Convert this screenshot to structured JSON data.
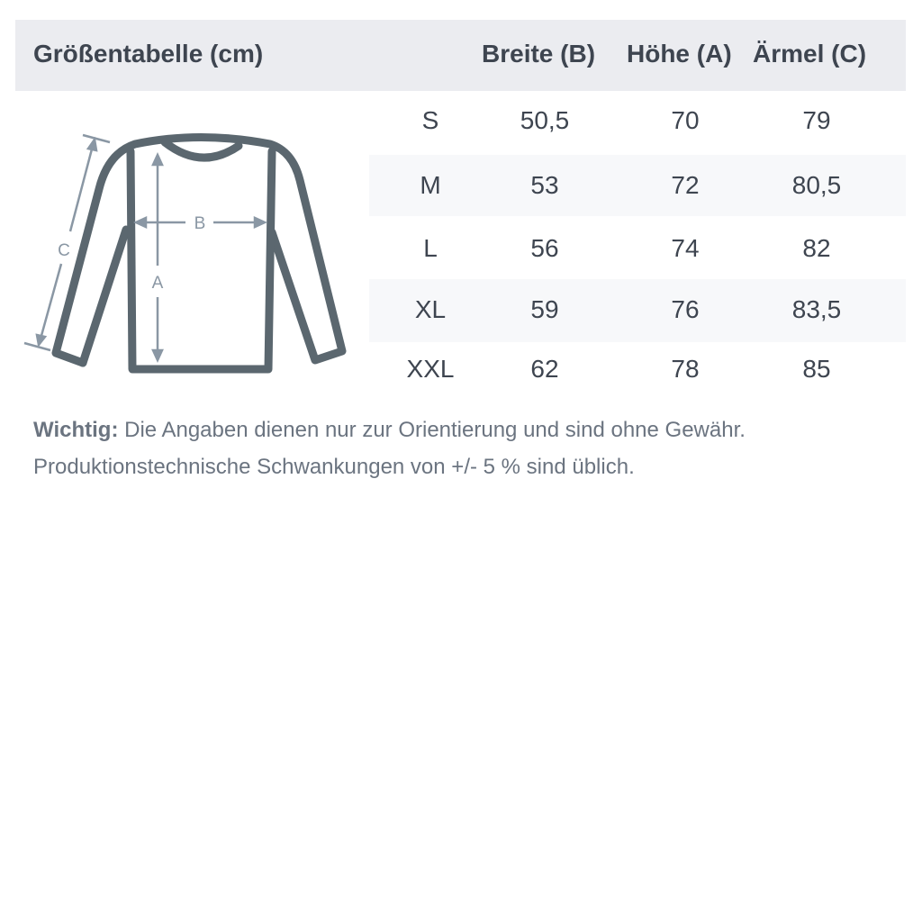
{
  "title": "Größentabelle (cm)",
  "columns": [
    "Breite (B)",
    "Höhe (A)",
    "Ärmel (C)"
  ],
  "rows": [
    {
      "size": "S",
      "breite": "50,5",
      "hoehe": "70",
      "aermel": "79"
    },
    {
      "size": "M",
      "breite": "53",
      "hoehe": "72",
      "aermel": "80,5"
    },
    {
      "size": "L",
      "breite": "56",
      "hoehe": "74",
      "aermel": "82"
    },
    {
      "size": "XL",
      "breite": "59",
      "hoehe": "76",
      "aermel": "83,5"
    },
    {
      "size": "XXL",
      "breite": "62",
      "hoehe": "78",
      "aermel": "85"
    }
  ],
  "diagram": {
    "label_a": "A",
    "label_b": "B",
    "label_c": "C"
  },
  "note": {
    "bold": "Wichtig:",
    "line1": " Die Angaben dienen nur zur Orientierung und sind ohne Gewähr.",
    "line2": "Produktionstechnische Schwankungen von +/- 5 % sind üblich."
  },
  "colors": {
    "header_bg": "#ebecf0",
    "stripe": "#f7f8fa",
    "text": "#3e4550",
    "outline": "#5b676f",
    "arrows": "#8a97a4"
  }
}
